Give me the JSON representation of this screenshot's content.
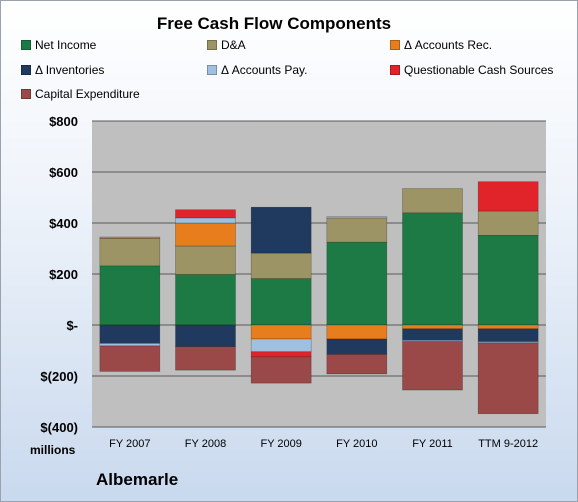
{
  "chart_data": {
    "type": "bar",
    "stacked": true,
    "title": "Free Cash Flow Components",
    "company": "Albemarle",
    "unit_label": "millions",
    "categories": [
      "FY 2007",
      "FY 2008",
      "FY 2009",
      "FY 2010",
      "FY 2011",
      "TTM 9-2012"
    ],
    "ylim": [
      -400,
      800
    ],
    "yticks": [
      {
        "value": 800,
        "label": "$800"
      },
      {
        "value": 600,
        "label": "$600"
      },
      {
        "value": 400,
        "label": "$400"
      },
      {
        "value": 200,
        "label": "$200"
      },
      {
        "value": 0,
        "label": "$-"
      },
      {
        "value": -200,
        "label": "$(200)"
      },
      {
        "value": -400,
        "label": "$(400)"
      }
    ],
    "grid": true,
    "legend_position": "top",
    "series": [
      {
        "name": "Net Income",
        "color": "#1e7a45",
        "values": [
          232,
          198,
          182,
          325,
          440,
          352
        ]
      },
      {
        "name": "D&A",
        "color": "#9d9466",
        "values": [
          108,
          112,
          100,
          95,
          95,
          95
        ]
      },
      {
        "name": "Δ Accounts Rec.",
        "color": "#e87d1e",
        "values": [
          5,
          90,
          -55,
          -55,
          -15,
          -15
        ]
      },
      {
        "name": "Δ Inventories",
        "color": "#1f3a5e",
        "values": [
          -72,
          -85,
          180,
          -60,
          -45,
          -50
        ]
      },
      {
        "name": "Δ Accounts Pay.",
        "color": "#9fc0e0",
        "values": [
          -10,
          20,
          -50,
          5,
          -5,
          -5
        ]
      },
      {
        "name": "Questionable Cash Sources",
        "color": "#e0242a",
        "values": [
          0,
          32,
          -20,
          0,
          0,
          115
        ]
      },
      {
        "name": "Capital Expenditure",
        "color": "#9a4848",
        "values": [
          -100,
          -92,
          -103,
          -77,
          -190,
          -278
        ]
      }
    ]
  }
}
